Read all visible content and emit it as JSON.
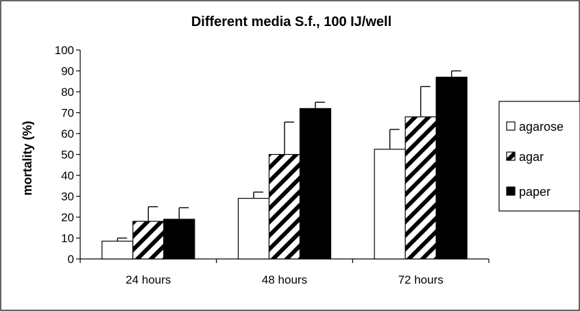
{
  "chart_data": {
    "type": "bar",
    "title": "Different media S.f., 100 IJ/well",
    "xlabel": "",
    "ylabel": "mortality (%)",
    "ylim": [
      0,
      100
    ],
    "yticks": [
      "0",
      "10",
      "20",
      "30",
      "40",
      "50",
      "60",
      "70",
      "80",
      "90",
      "100"
    ],
    "categories": [
      "24 hours",
      "48 hours",
      "72 hours"
    ],
    "series": [
      {
        "name": "agarose",
        "fill": "white",
        "values": [
          8.5,
          29,
          52.5
        ],
        "errors": [
          1.5,
          3,
          9.5
        ]
      },
      {
        "name": "agar",
        "fill": "hatch",
        "values": [
          18,
          50,
          68
        ],
        "errors": [
          7,
          15.5,
          14.5
        ]
      },
      {
        "name": "paper",
        "fill": "black",
        "values": [
          19,
          72,
          87
        ],
        "errors": [
          5.5,
          3,
          3
        ]
      }
    ],
    "legend_position": "right",
    "grid": false
  }
}
